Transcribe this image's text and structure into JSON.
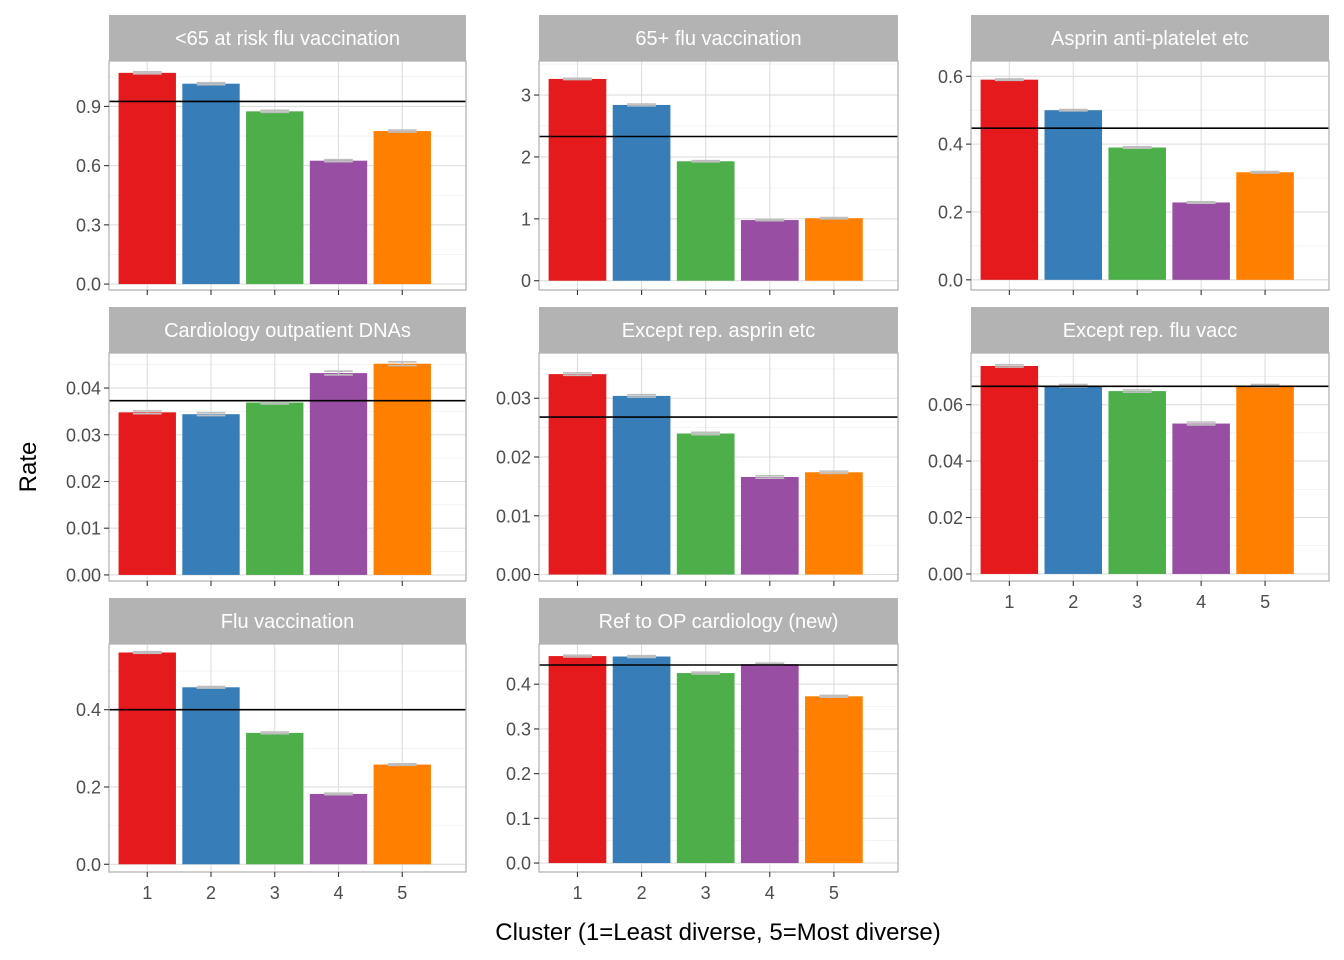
{
  "chart_data": {
    "type": "bar",
    "layout": "facet_wrap",
    "xlabel": "Cluster (1=Least diverse, 5=Most diverse)",
    "ylabel": "Rate",
    "categories": [
      "1",
      "2",
      "3",
      "4",
      "5"
    ],
    "bar_colors": [
      "#E41A1C",
      "#377EB8",
      "#4DAF4A",
      "#984EA3",
      "#FF7F00"
    ],
    "strip_color": "#B3B3B3",
    "reference_line_color": "#000000",
    "errorbar_color": "#BEBEBE",
    "grid": true,
    "panels": [
      {
        "title": "<65 at risk flu vaccination",
        "values": [
          1.07,
          1.015,
          0.875,
          0.625,
          0.775
        ],
        "errors": [
          0.005,
          0.005,
          0.005,
          0.005,
          0.005
        ],
        "reference": 0.925,
        "ylim": [
          -0.03,
          1.13
        ],
        "yticks": [
          0.0,
          0.3,
          0.6,
          0.9
        ],
        "ytick_labels": [
          "0.0",
          "0.3",
          "0.6",
          "0.9"
        ]
      },
      {
        "title": "65+ flu vaccination",
        "values": [
          3.26,
          2.84,
          1.93,
          0.98,
          1.01
        ],
        "errors": [
          0.01,
          0.015,
          0.01,
          0.01,
          0.01
        ],
        "reference": 2.33,
        "ylim": [
          -0.15,
          3.55
        ],
        "yticks": [
          0,
          1,
          2,
          3
        ],
        "ytick_labels": [
          "0",
          "1",
          "2",
          "3"
        ]
      },
      {
        "title": "Asprin anti-platelet etc",
        "values": [
          0.59,
          0.5,
          0.39,
          0.228,
          0.317
        ],
        "errors": [
          0.002,
          0.002,
          0.002,
          0.002,
          0.002
        ],
        "reference": 0.447,
        "ylim": [
          -0.03,
          0.645
        ],
        "yticks": [
          0.0,
          0.2,
          0.4,
          0.6
        ],
        "ytick_labels": [
          "0.0",
          "0.2",
          "0.4",
          "0.6"
        ]
      },
      {
        "title": "Cardiology outpatient DNAs",
        "values": [
          0.0348,
          0.0344,
          0.0369,
          0.0432,
          0.0452
        ],
        "errors": [
          0.0003,
          0.0003,
          0.0003,
          0.0004,
          0.0004
        ],
        "reference": 0.0373,
        "ylim": [
          -0.0013,
          0.0475
        ],
        "yticks": [
          0.0,
          0.01,
          0.02,
          0.03,
          0.04
        ],
        "ytick_labels": [
          "0.00",
          "0.01",
          "0.02",
          "0.03",
          "0.04"
        ]
      },
      {
        "title": "Except rep. asprin etc",
        "values": [
          0.0341,
          0.0304,
          0.024,
          0.0166,
          0.0174
        ],
        "errors": [
          0.0002,
          0.0002,
          0.0002,
          0.0002,
          0.0002
        ],
        "reference": 0.0268,
        "ylim": [
          -0.0011,
          0.0377
        ],
        "yticks": [
          0.0,
          0.01,
          0.02,
          0.03
        ],
        "ytick_labels": [
          "0.00",
          "0.01",
          "0.02",
          "0.03"
        ]
      },
      {
        "title": "Except rep. flu vacc",
        "values": [
          0.0737,
          0.0667,
          0.0648,
          0.0533,
          0.0667
        ],
        "errors": [
          0.0004,
          0.0004,
          0.0004,
          0.0005,
          0.0004
        ],
        "reference": 0.0665,
        "ylim": [
          -0.0025,
          0.0783
        ],
        "yticks": [
          0.0,
          0.02,
          0.04,
          0.06
        ],
        "ytick_labels": [
          "0.00",
          "0.02",
          "0.04",
          "0.06"
        ]
      },
      {
        "title": "Flu vaccination",
        "values": [
          0.548,
          0.458,
          0.34,
          0.182,
          0.258
        ],
        "errors": [
          0.002,
          0.002,
          0.002,
          0.002,
          0.002
        ],
        "reference": 0.4,
        "ylim": [
          -0.02,
          0.57
        ],
        "yticks": [
          0.0,
          0.2,
          0.4
        ],
        "ytick_labels": [
          "0.0",
          "0.2",
          "0.4"
        ]
      },
      {
        "title": "Ref to OP cardiology (new)",
        "values": [
          0.463,
          0.462,
          0.425,
          0.445,
          0.373
        ],
        "errors": [
          0.002,
          0.002,
          0.002,
          0.002,
          0.002
        ],
        "reference": 0.443,
        "ylim": [
          -0.02,
          0.49
        ],
        "yticks": [
          0.0,
          0.1,
          0.2,
          0.3,
          0.4
        ],
        "ytick_labels": [
          "0.0",
          "0.1",
          "0.2",
          "0.3",
          "0.4"
        ]
      }
    ]
  }
}
